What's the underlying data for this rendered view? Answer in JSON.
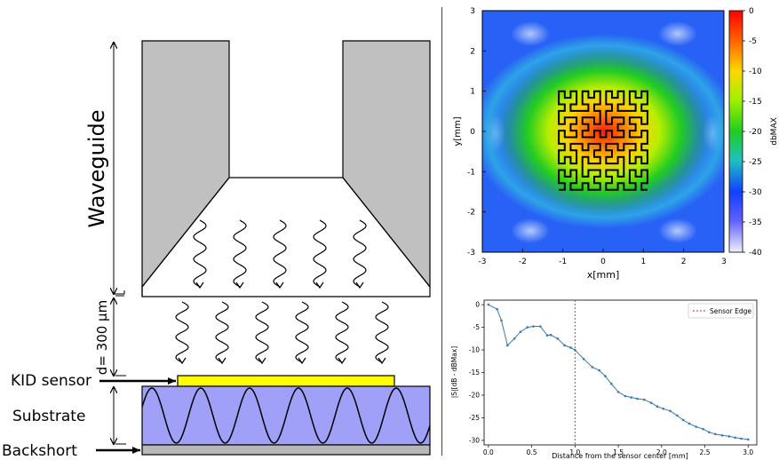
{
  "diagram": {
    "waveguide_label": "Waveguide",
    "distance_label": "d= 300 µm",
    "kid_sensor_label": "KID sensor",
    "substrate_label": "Substrate",
    "backshort_label": "Backshort",
    "colors": {
      "waveguide_wall": "#c0c0c0",
      "kid_sensor": "#ffff00",
      "substrate": "#a0a0f8",
      "backshort": "#b8b8b8"
    }
  },
  "chart_data": [
    {
      "type": "heatmap",
      "title": "",
      "xlabel": "x[mm]",
      "ylabel": "y[mm]",
      "xlim": [
        -3,
        3
      ],
      "ylim": [
        -3,
        3
      ],
      "xticks": [
        -3,
        -2,
        -1,
        0,
        1,
        2,
        3
      ],
      "yticks": [
        3,
        2,
        1,
        0,
        -1,
        -2,
        -3
      ],
      "colorbar": {
        "label": "dbMAX",
        "range": [
          -40,
          0
        ],
        "ticks": [
          0,
          -5,
          -10,
          -15,
          -20,
          -25,
          -30,
          -35,
          -40
        ],
        "colormap": "jet"
      },
      "overlay": "Hilbert-curve sensor outline spanning x -1.1..1.1, y -1.45..1.0"
    },
    {
      "type": "line",
      "title": "",
      "xlabel": "Distance from the sensor center [mm]",
      "ylabel": "|S|[dB - dBMax]",
      "xlim": [
        -0.05,
        3.1
      ],
      "ylim": [
        -31,
        1
      ],
      "xticks": [
        "0.0",
        "0.5",
        "1.0",
        "1.5",
        "2.0",
        "2.5",
        "3.0"
      ],
      "yticks": [
        "0",
        "-5",
        "-10",
        "-15",
        "-20",
        "-25",
        "-30"
      ],
      "legend": "top-right",
      "series": [
        {
          "name": "",
          "color": "#3a78b0",
          "x": [
            0.0,
            0.1,
            0.15,
            0.22,
            0.3,
            0.37,
            0.45,
            0.52,
            0.6,
            0.68,
            0.72,
            0.8,
            0.88,
            0.95,
            1.0,
            1.1,
            1.2,
            1.28,
            1.35,
            1.42,
            1.5,
            1.58,
            1.65,
            1.72,
            1.8,
            1.88,
            1.95,
            2.02,
            2.1,
            2.18,
            2.25,
            2.32,
            2.4,
            2.48,
            2.55,
            2.62,
            2.7,
            2.78,
            2.85,
            2.92,
            3.0
          ],
          "y": [
            0,
            -1,
            -3.5,
            -9,
            -7.5,
            -6,
            -5,
            -4.8,
            -4.8,
            -6.8,
            -6.7,
            -7.5,
            -9,
            -9.5,
            -10,
            -12,
            -13.8,
            -14.5,
            -15.8,
            -17.5,
            -19.3,
            -20.2,
            -20.5,
            -20.8,
            -21,
            -21.7,
            -22.5,
            -23,
            -23.5,
            -24.5,
            -25.5,
            -26.3,
            -27,
            -27.5,
            -28.2,
            -28.6,
            -28.9,
            -29.1,
            -29.4,
            -29.6,
            -29.8
          ]
        },
        {
          "name": "Sensor Edge",
          "type": "vline",
          "color": "#d62728",
          "x": 1.0
        }
      ]
    }
  ]
}
